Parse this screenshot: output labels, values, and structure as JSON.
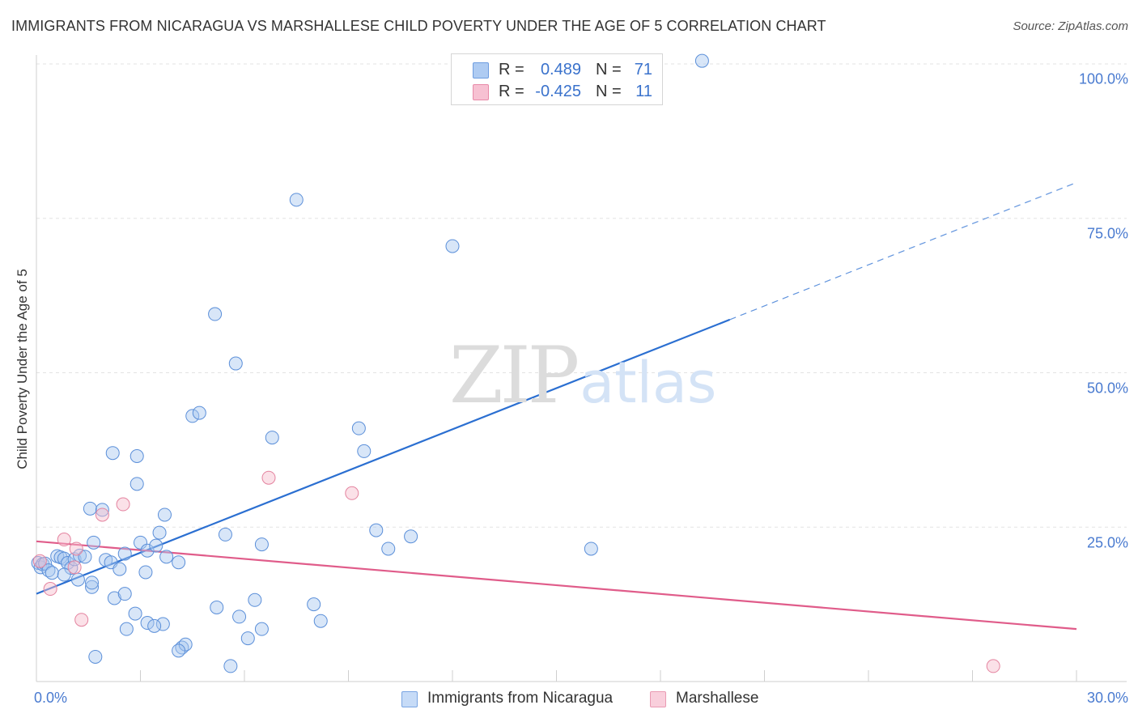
{
  "header": {
    "title": "IMMIGRANTS FROM NICARAGUA VS MARSHALLESE CHILD POVERTY UNDER THE AGE OF 5 CORRELATION CHART",
    "source": "Source: ZipAtlas.com"
  },
  "watermark": {
    "zip": "ZIP",
    "atlas": "atlas"
  },
  "stats": [
    {
      "r_label": "R =",
      "r_value": "0.489",
      "n_label": "N =",
      "n_value": "71",
      "color": "#aecbf2",
      "border": "#6e9de0"
    },
    {
      "r_label": "R =",
      "r_value": "-0.425",
      "n_label": "N =",
      "n_value": "11",
      "color": "#f7c1d2",
      "border": "#e88aa8"
    }
  ],
  "legend": [
    {
      "label": "Immigrants from Nicaragua",
      "color": "#c6dbf7",
      "border": "#7aa5e2"
    },
    {
      "label": "Marshallese",
      "color": "#f9cfdc",
      "border": "#ea9ab3"
    }
  ],
  "chart_data": {
    "type": "scatter",
    "title": "IMMIGRANTS FROM NICARAGUA VS MARSHALLESE CHILD POVERTY UNDER THE AGE OF 5 CORRELATION CHART",
    "xlabel": "",
    "ylabel": "Child Poverty Under the Age of 5",
    "xlim": [
      0,
      30
    ],
    "ylim": [
      0,
      100
    ],
    "x_tick_labels": [
      "0.0%",
      "30.0%"
    ],
    "y_ticks": [
      {
        "value": 25,
        "label": "25.0%"
      },
      {
        "value": 50,
        "label": "50.0%"
      },
      {
        "value": 75,
        "label": "75.0%"
      },
      {
        "value": 100,
        "label": "100.0%"
      }
    ],
    "grid": true,
    "series": [
      {
        "name": "Immigrants from Nicaragua",
        "color": "#5b8fd9",
        "fill": "#a9c8f0",
        "trend": {
          "x0": 0,
          "y0": 14.2,
          "x1": 20.0,
          "y1": 58.6,
          "dash_to_x": 30,
          "dash_to_y": 80.8,
          "color": "#2b6fd1"
        },
        "points": [
          [
            0.05,
            19.2
          ],
          [
            0.12,
            18.5
          ],
          [
            0.18,
            19.0
          ],
          [
            0.25,
            19.1
          ],
          [
            0.35,
            18.0
          ],
          [
            0.45,
            17.6
          ],
          [
            0.6,
            20.3
          ],
          [
            0.7,
            20.1
          ],
          [
            0.8,
            19.9
          ],
          [
            0.9,
            19.2
          ],
          [
            1.0,
            18.4
          ],
          [
            1.1,
            19.8
          ],
          [
            1.25,
            20.4
          ],
          [
            1.4,
            20.2
          ],
          [
            1.65,
            22.5
          ],
          [
            2.0,
            19.7
          ],
          [
            2.15,
            19.3
          ],
          [
            1.6,
            15.3
          ],
          [
            1.55,
            28.0
          ],
          [
            1.9,
            27.8
          ],
          [
            2.2,
            37.0
          ],
          [
            2.9,
            36.5
          ],
          [
            2.9,
            32.0
          ],
          [
            2.55,
            20.7
          ],
          [
            1.6,
            16.0
          ],
          [
            2.4,
            18.2
          ],
          [
            2.25,
            13.5
          ],
          [
            2.55,
            14.2
          ],
          [
            3.0,
            22.5
          ],
          [
            3.2,
            21.2
          ],
          [
            3.45,
            22.0
          ],
          [
            3.55,
            24.1
          ],
          [
            3.7,
            27.0
          ],
          [
            3.75,
            20.2
          ],
          [
            4.1,
            19.3
          ],
          [
            4.5,
            43.0
          ],
          [
            4.7,
            43.5
          ],
          [
            5.15,
            59.5
          ],
          [
            5.45,
            23.8
          ],
          [
            5.75,
            51.5
          ],
          [
            6.5,
            22.2
          ],
          [
            6.8,
            39.5
          ],
          [
            7.5,
            78.0
          ],
          [
            8.0,
            12.5
          ],
          [
            8.2,
            9.8
          ],
          [
            9.3,
            41.0
          ],
          [
            9.45,
            37.3
          ],
          [
            9.8,
            24.5
          ],
          [
            10.15,
            21.5
          ],
          [
            10.8,
            23.5
          ],
          [
            12.0,
            70.5
          ],
          [
            16.0,
            21.5
          ],
          [
            19.2,
            100.5
          ],
          [
            1.7,
            4.0
          ],
          [
            3.2,
            9.5
          ],
          [
            3.65,
            9.3
          ],
          [
            3.4,
            9.0
          ],
          [
            4.2,
            5.5
          ],
          [
            4.3,
            6.0
          ],
          [
            5.2,
            12.0
          ],
          [
            5.85,
            10.5
          ],
          [
            6.1,
            7.0
          ],
          [
            6.3,
            13.2
          ],
          [
            6.5,
            8.5
          ],
          [
            5.6,
            2.5
          ],
          [
            4.1,
            5.0
          ],
          [
            3.15,
            17.7
          ],
          [
            2.85,
            11.0
          ],
          [
            2.6,
            8.5
          ],
          [
            0.8,
            17.3
          ],
          [
            1.2,
            16.5
          ]
        ]
      },
      {
        "name": "Marshallese",
        "color": "#e4839f",
        "fill": "#f6bccd",
        "trend": {
          "x0": 0,
          "y0": 22.7,
          "x1": 30,
          "y1": 8.5,
          "color": "#e05c8a"
        },
        "points": [
          [
            0.1,
            19.5
          ],
          [
            0.4,
            15.0
          ],
          [
            0.8,
            23.0
          ],
          [
            1.1,
            18.5
          ],
          [
            1.15,
            21.5
          ],
          [
            1.3,
            10.0
          ],
          [
            1.9,
            27.0
          ],
          [
            2.5,
            28.7
          ],
          [
            6.7,
            33.0
          ],
          [
            9.1,
            30.5
          ],
          [
            27.6,
            2.5
          ]
        ]
      }
    ]
  }
}
